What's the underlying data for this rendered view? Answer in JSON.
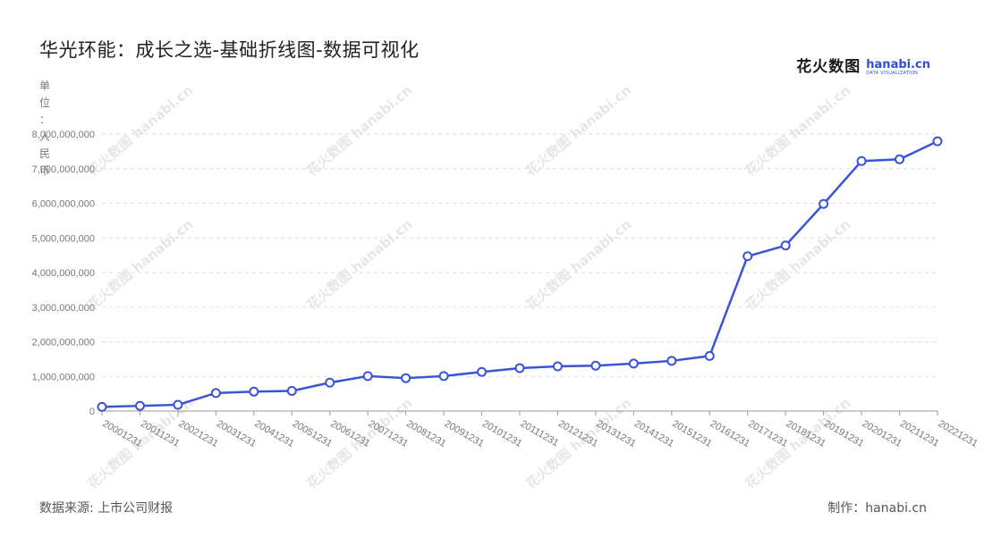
{
  "header": {
    "title": "华光环能：成长之选-基础折线图-数据可视化",
    "brand_cn": "花火数图",
    "brand_en": "hanabi.cn",
    "brand_sub": "DATA VISUALIZATION"
  },
  "footer": {
    "source": "数据来源: 上市公司财报",
    "maker": "制作：hanabi.cn"
  },
  "colors": {
    "line": "#3b54d6",
    "grid": "#dddddd",
    "axis": "#999999"
  },
  "chart_data": {
    "type": "line",
    "title": "华光环能：成长之选-基础折线图-数据可视化",
    "ylabel": "单位：人民币",
    "ylim": [
      0,
      8000000000
    ],
    "yticks": [
      0,
      1000000000,
      2000000000,
      3000000000,
      4000000000,
      5000000000,
      6000000000,
      7000000000,
      8000000000
    ],
    "ytick_labels": [
      "0",
      "1,000,000,000",
      "2,000,000,000",
      "3,000,000,000",
      "4,000,000,000",
      "5,000,000,000",
      "6,000,000,000",
      "7,000,000,000",
      "8,000,000,000"
    ],
    "grid": true,
    "x": [
      "20001231",
      "20011231",
      "20021231",
      "20031231",
      "20041231",
      "20051231",
      "20061231",
      "20071231",
      "20081231",
      "20091231",
      "20101231",
      "20111231",
      "20121231",
      "20131231",
      "20141231",
      "20151231",
      "20161231",
      "20171231",
      "20181231",
      "20191231",
      "20201231",
      "20211231",
      "20221231"
    ],
    "series": [
      {
        "values": [
          120000000,
          150000000,
          180000000,
          520000000,
          560000000,
          580000000,
          820000000,
          1010000000,
          950000000,
          1010000000,
          1130000000,
          1240000000,
          1290000000,
          1310000000,
          1370000000,
          1450000000,
          1590000000,
          4470000000,
          4780000000,
          5980000000,
          7220000000,
          7270000000,
          7790000000
        ]
      }
    ]
  }
}
